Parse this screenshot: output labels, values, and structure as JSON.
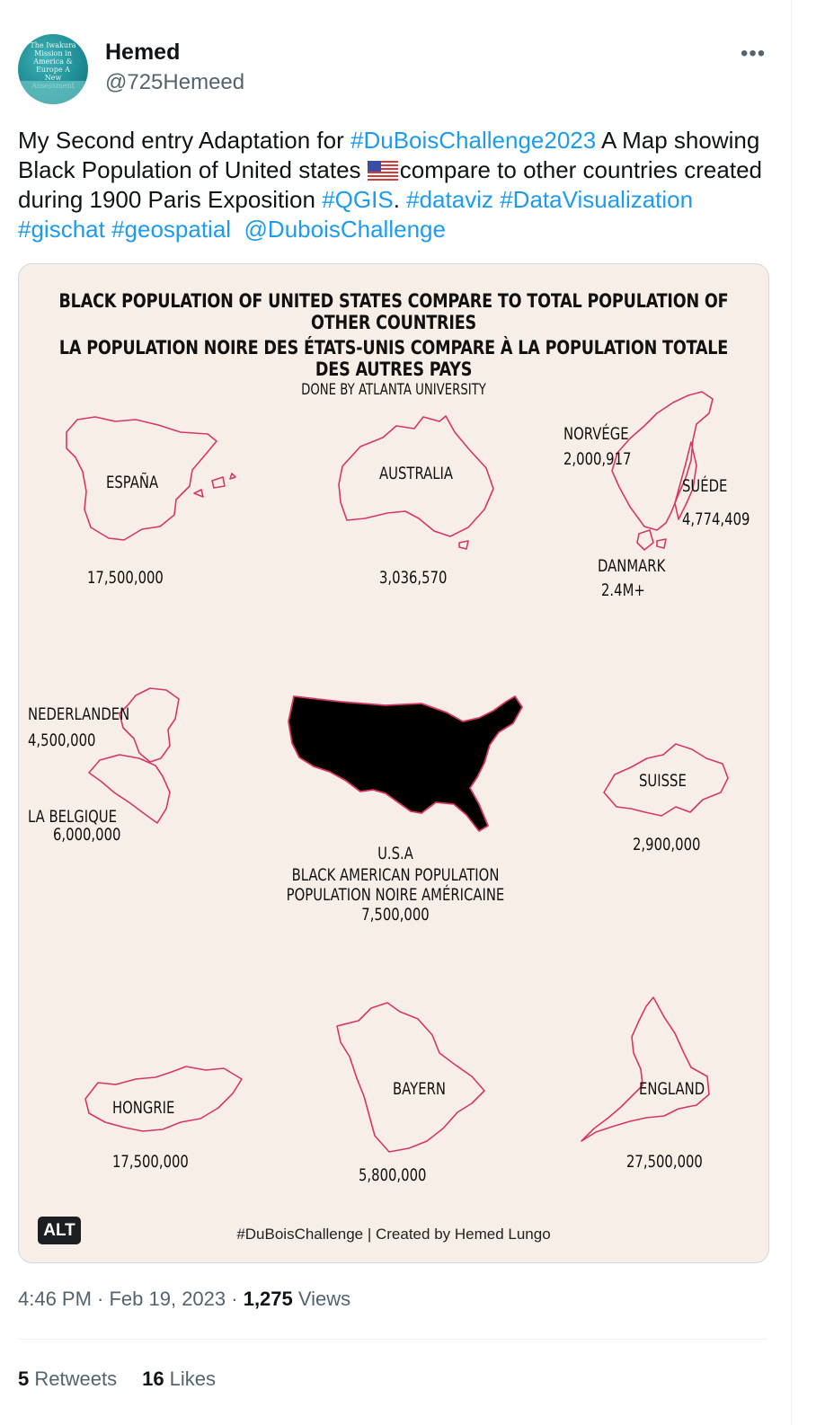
{
  "user": {
    "name": "Hemed",
    "handle": "@725Hemeed",
    "avatar_text": "The Iwakura Mission in America & Europe A New Assessment"
  },
  "tweet": {
    "t1": "My Second entry Adaptation for ",
    "h1": "#DuBoisChallenge2023",
    "t2": " A Map showing Black Population of United states ",
    "t3": "compare to other countries created during 1900 Paris Exposition ",
    "h2": "#QGIS",
    "t4": ". ",
    "h3": "#dataviz",
    "h4": "#DataVisualization",
    "h5": "#gischat",
    "h6": "#geospatial",
    "h7": "@DuboisChallenge"
  },
  "media": {
    "title_en": "BLACK POPULATION OF UNITED STATES COMPARE TO TOTAL POPULATION OF OTHER COUNTRIES",
    "title_fr": "LA POPULATION NOIRE DES ÉTATS-UNIS COMPARE À LA POPULATION TOTALE DES AUTRES PAYS",
    "subtitle": "DONE BY ATLANTA UNIVERSITY",
    "alt_badge": "ALT",
    "credit": "#DuBoisChallenge | Created by Hemed Lungo",
    "stroke_color": "#d6385f",
    "background": "#f8eee8",
    "countries": {
      "espana": {
        "name": "ESPAÑA",
        "value": "17,500,000"
      },
      "australia": {
        "name": "AUSTRALIA",
        "value": "3,036,570"
      },
      "norvege": {
        "name": "NORVÉGE",
        "value": "2,000,917"
      },
      "suede": {
        "name": "SUÉDE",
        "value": "4,774,409"
      },
      "danmark": {
        "name": "DANMARK",
        "value": "2.4M+"
      },
      "nederlanden": {
        "name": "NEDERLANDEN",
        "value": "4,500,000"
      },
      "belgique": {
        "name": "LA BELGIQUE",
        "value": "6,000,000"
      },
      "usa": {
        "name": "U.S.A",
        "line1": "BLACK AMERICAN POPULATION",
        "line2": "POPULATION NOIRE AMÉRICAINE",
        "value": "7,500,000"
      },
      "suisse": {
        "name": "SUISSE",
        "value": "2,900,000"
      },
      "hongrie": {
        "name": "HONGRIE",
        "value": "17,500,000"
      },
      "bayern": {
        "name": "BAYERN",
        "value": "5,800,000"
      },
      "england": {
        "name": "ENGLAND",
        "value": "27,500,000"
      }
    }
  },
  "meta": {
    "time": "4:46 PM · Feb 19, 2023 · ",
    "views_count": "1,275",
    "views_label": " Views"
  },
  "stats": {
    "retweets_count": "5",
    "retweets_label": " Retweets",
    "likes_count": "16",
    "likes_label": " Likes"
  }
}
